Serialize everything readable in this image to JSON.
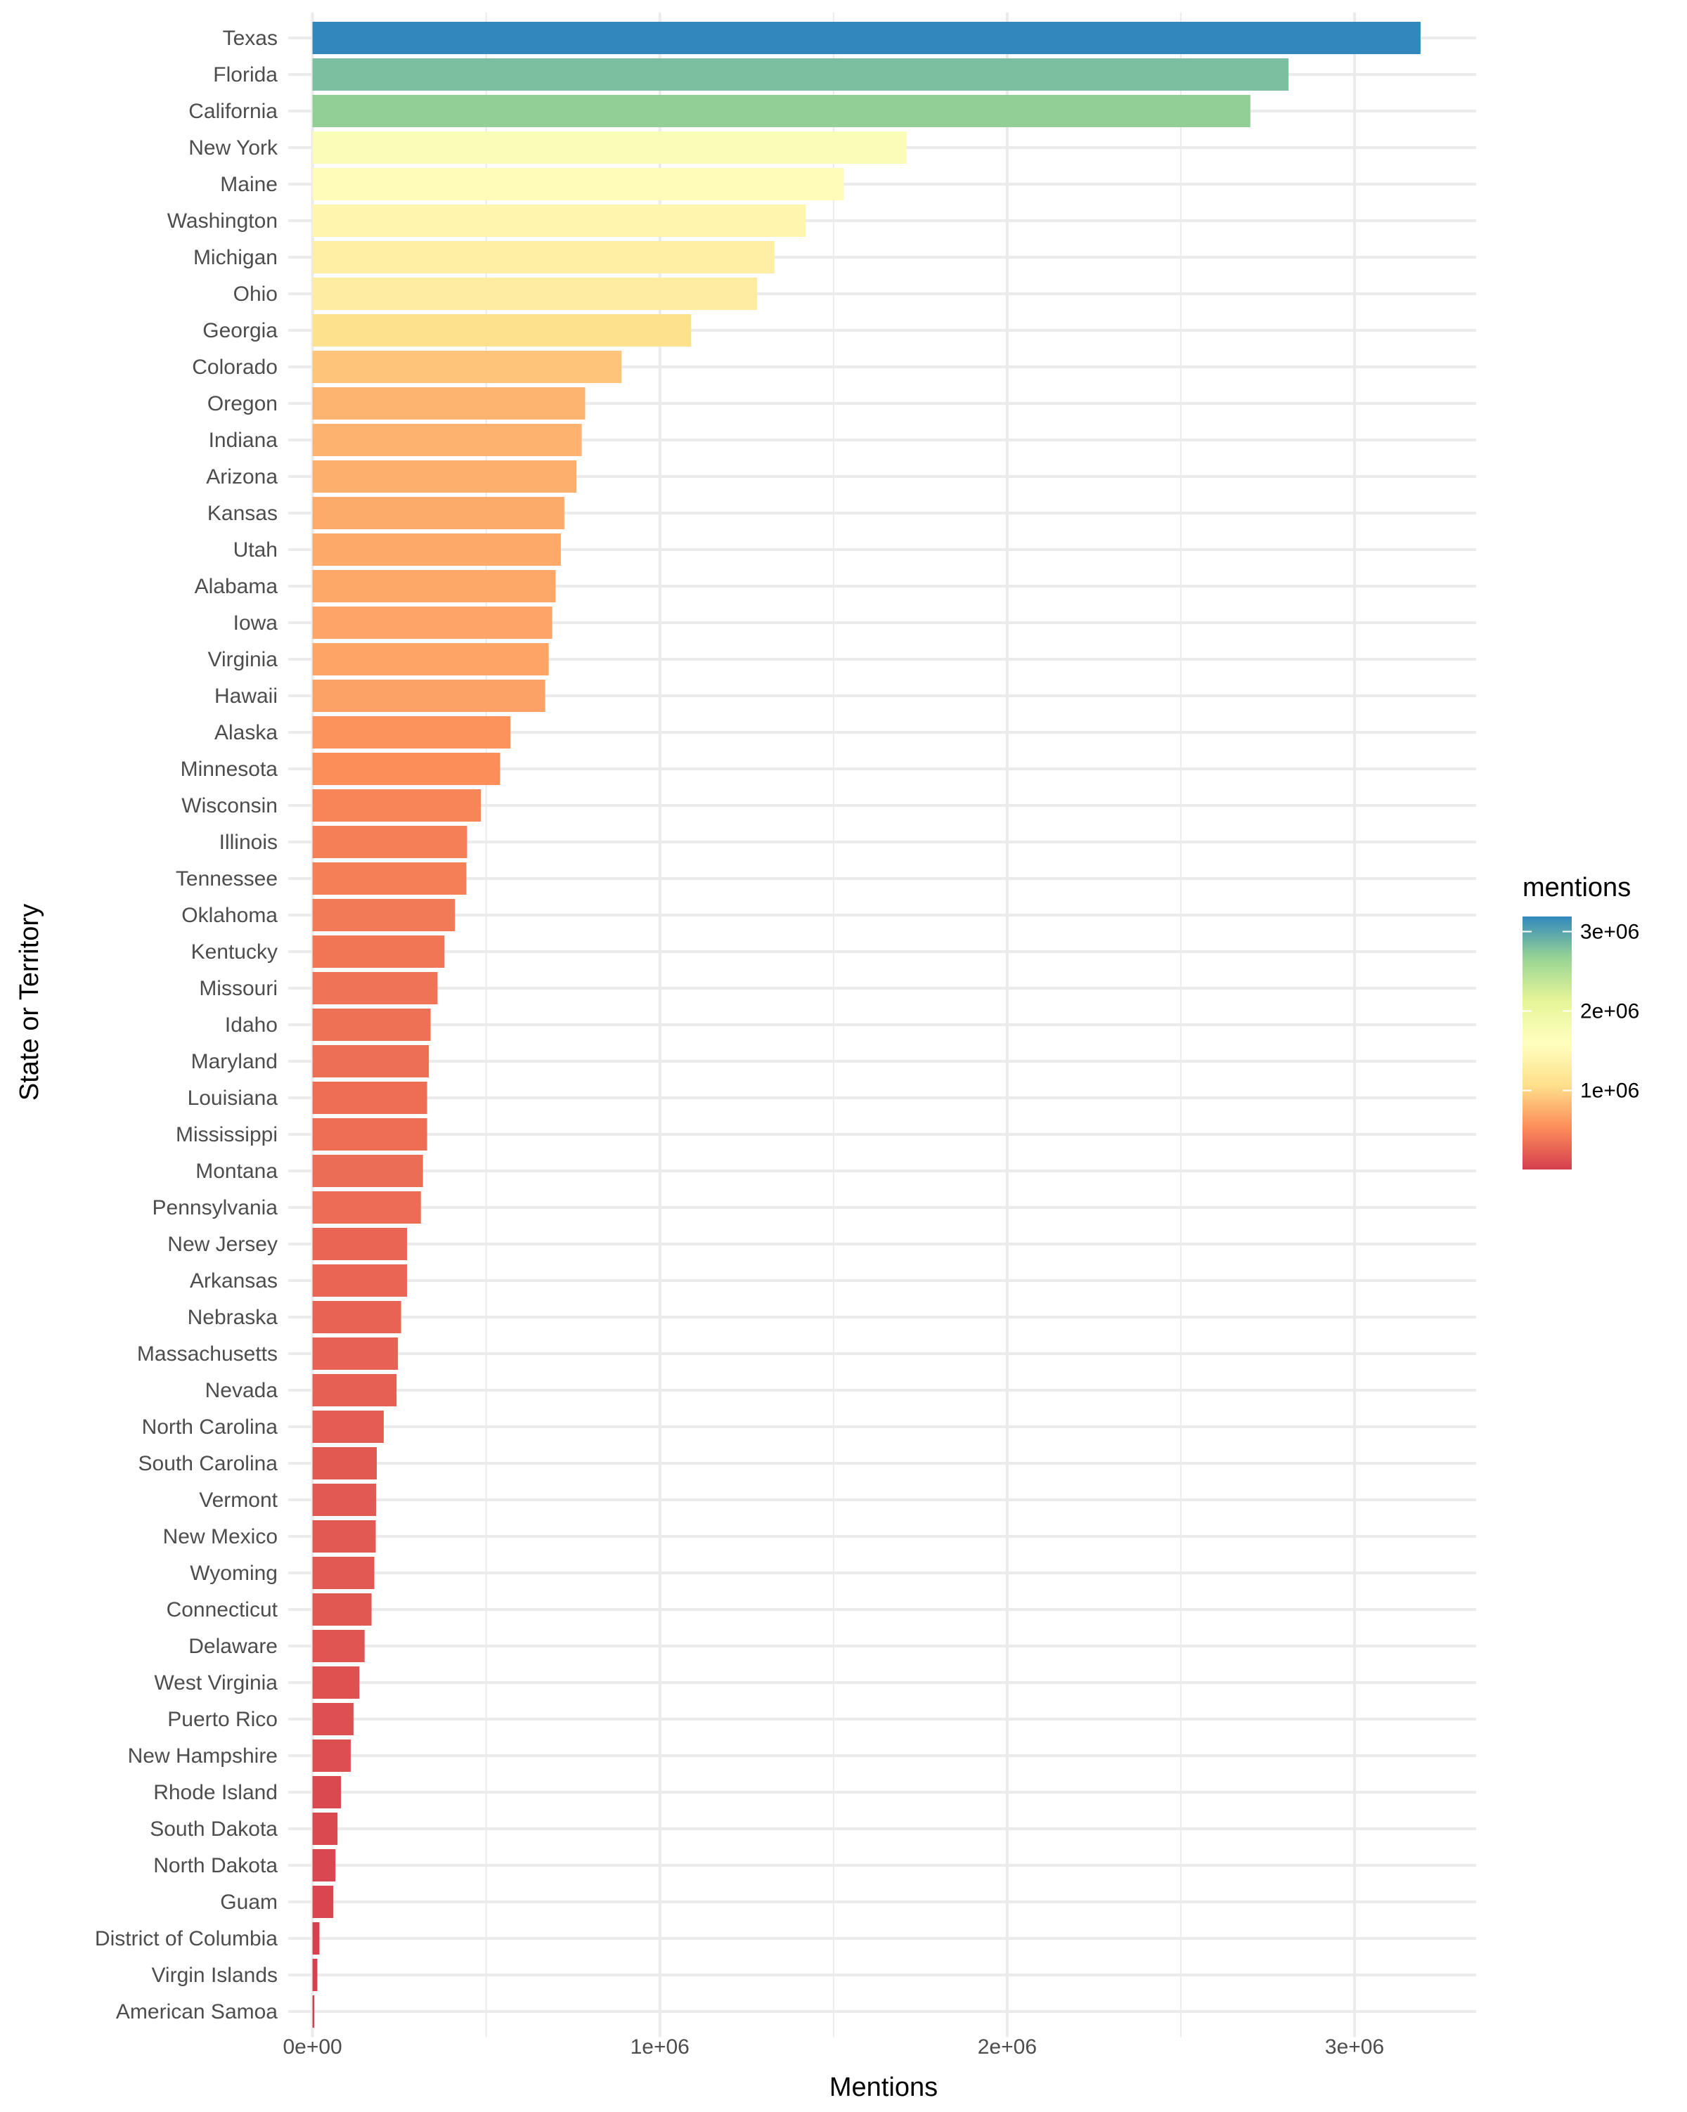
{
  "chart_data": {
    "type": "bar",
    "orientation": "horizontal",
    "title": "",
    "xlabel": "Mentions",
    "ylabel": "State or Territory",
    "xlim": [
      -70000,
      3350000
    ],
    "xticks": [
      0,
      1000000,
      2000000,
      3000000
    ],
    "xtick_labels": [
      "0e+00",
      "1e+06",
      "2e+06",
      "3e+06"
    ],
    "grid": true,
    "categories": [
      "Texas",
      "Florida",
      "California",
      "New York",
      "Maine",
      "Washington",
      "Michigan",
      "Ohio",
      "Georgia",
      "Colorado",
      "Oregon",
      "Indiana",
      "Arizona",
      "Kansas",
      "Utah",
      "Alabama",
      "Iowa",
      "Virginia",
      "Hawaii",
      "Alaska",
      "Minnesota",
      "Wisconsin",
      "Illinois",
      "Tennessee",
      "Oklahoma",
      "Kentucky",
      "Missouri",
      "Idaho",
      "Maryland",
      "Louisiana",
      "Mississippi",
      "Montana",
      "Pennsylvania",
      "New Jersey",
      "Arkansas",
      "Nebraska",
      "Massachusetts",
      "Nevada",
      "North Carolina",
      "South Carolina",
      "Vermont",
      "New Mexico",
      "Wyoming",
      "Connecticut",
      "Delaware",
      "West Virginia",
      "Puerto Rico",
      "New Hampshire",
      "Rhode Island",
      "South Dakota",
      "North Dakota",
      "Guam",
      "District of Columbia",
      "Virgin Islands",
      "American Samoa"
    ],
    "values": [
      3190000,
      2810000,
      2700000,
      1710000,
      1530000,
      1420000,
      1330000,
      1280000,
      1090000,
      890000,
      785000,
      775000,
      760000,
      725000,
      715000,
      700000,
      690000,
      680000,
      670000,
      570000,
      540000,
      485000,
      445000,
      443000,
      410000,
      380000,
      360000,
      340000,
      335000,
      330000,
      330000,
      318000,
      312000,
      272000,
      272000,
      255000,
      246000,
      242000,
      205000,
      185000,
      183000,
      182000,
      178000,
      170000,
      150000,
      135000,
      118000,
      110000,
      82000,
      72000,
      66000,
      60000,
      20000,
      14000,
      5000
    ],
    "legend": {
      "title": "mentions",
      "position": "right",
      "labels": [
        "3e+06",
        "2e+06",
        "1e+06"
      ],
      "label_values": [
        3000000,
        2000000,
        1000000
      ],
      "range": [
        5000,
        3190000
      ],
      "palette": [
        "#d53e4f",
        "#fc8d59",
        "#fee08b",
        "#ffffbf",
        "#e6f598",
        "#99d594",
        "#3288bd"
      ]
    }
  }
}
